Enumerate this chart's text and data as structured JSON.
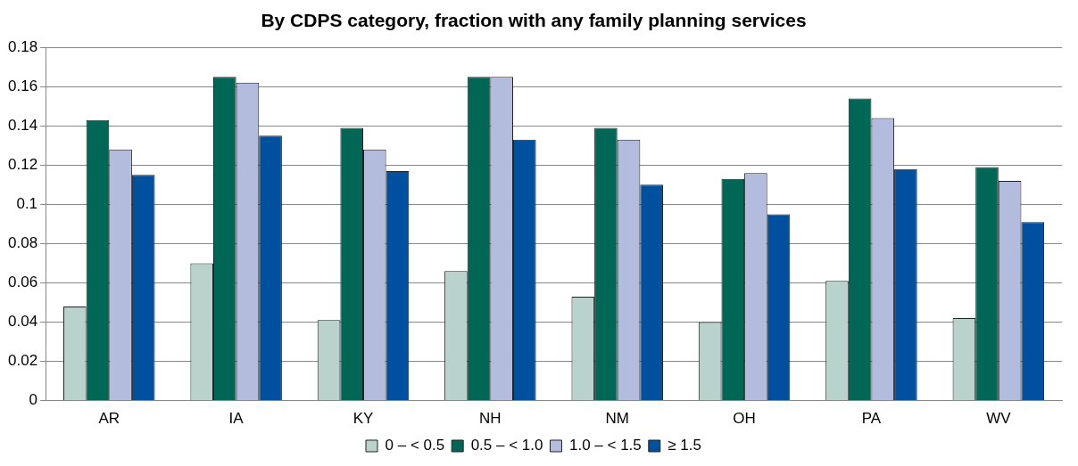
{
  "chart_data": {
    "type": "bar",
    "title": "By CDPS category, fraction with any family planning services",
    "categories": [
      "AR",
      "IA",
      "KY",
      "NH",
      "NM",
      "OH",
      "PA",
      "WV"
    ],
    "series": [
      {
        "name": "0 – < 0.5",
        "color": "#b9d3cc",
        "values": [
          0.048,
          0.07,
          0.041,
          0.066,
          0.053,
          0.04,
          0.061,
          0.042
        ]
      },
      {
        "name": "0.5 – < 1.0",
        "color": "#006655",
        "values": [
          0.143,
          0.165,
          0.139,
          0.165,
          0.139,
          0.113,
          0.154,
          0.119
        ]
      },
      {
        "name": "1.0 – < 1.5",
        "color": "#b3bcdc",
        "values": [
          0.128,
          0.162,
          0.128,
          0.165,
          0.133,
          0.116,
          0.144,
          0.112
        ]
      },
      {
        "name": "≥ 1.5",
        "color": "#0050a0",
        "values": [
          0.115,
          0.135,
          0.117,
          0.133,
          0.11,
          0.095,
          0.118,
          0.091
        ]
      }
    ],
    "ylim": [
      0,
      0.18
    ],
    "yticks": [
      0,
      {
        "value": 0.02,
        "label": "0.02"
      },
      {
        "value": 0.04,
        "label": "0.04"
      },
      {
        "value": 0.06,
        "label": "0.06"
      },
      {
        "value": 0.08,
        "label": "0.08"
      },
      {
        "value": 0.1,
        "label": "0.1"
      },
      {
        "value": 0.12,
        "label": "0.12"
      },
      {
        "value": 0.14,
        "label": "0.14"
      },
      {
        "value": 0.16,
        "label": "0.16"
      },
      {
        "value": 0.18,
        "label": "0.18"
      }
    ],
    "grid": "y",
    "legend": "bottom"
  }
}
